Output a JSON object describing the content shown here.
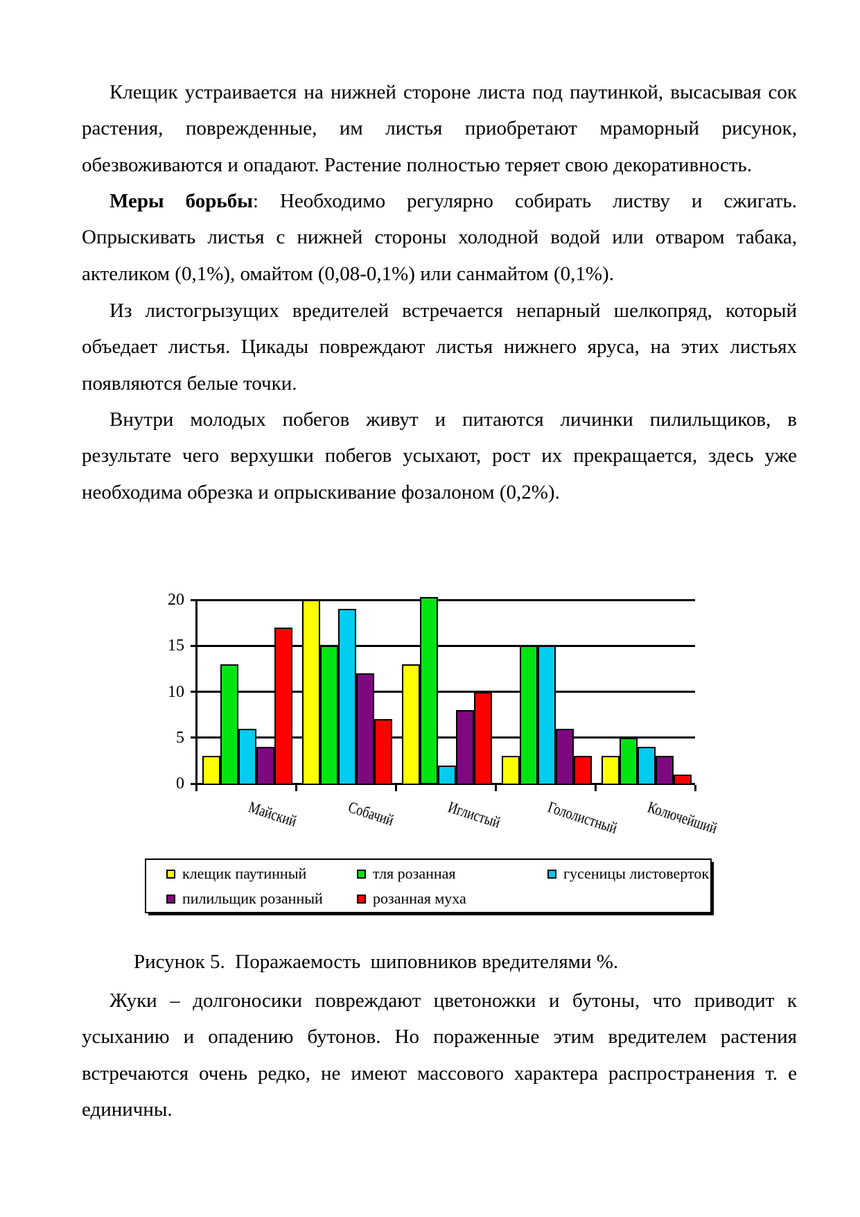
{
  "paragraphs": [
    {
      "indent": true,
      "lines": [
        {
          "justify": true,
          "segments": [
            {
              "text": "Клещик устраивается на нижней стороне листа под паутинкой, высасывая сок",
              "bold": false
            }
          ]
        },
        {
          "justify": true,
          "segments": [
            {
              "text": "растения, поврежденные, им листья приобретают мраморный рисунок,",
              "bold": false
            }
          ]
        },
        {
          "justify": false,
          "segments": [
            {
              "text": "обезвоживаются и опадают. Растение полностью теряет свою декоративность.",
              "bold": false
            }
          ]
        }
      ]
    },
    {
      "indent": true,
      "lines": [
        {
          "justify": true,
          "segments": [
            {
              "text": "Меры борьбы",
              "bold": true
            },
            {
              "text": ": Необходимо регулярно собирать листву и сжигать.",
              "bold": false
            }
          ]
        },
        {
          "justify": true,
          "segments": [
            {
              "text": "Опрыскивать листья с нижней стороны холодной водой или отваром табака,",
              "bold": false
            }
          ]
        },
        {
          "justify": false,
          "segments": [
            {
              "text": "актеликом (0,1%), омайтом (0,08-0,1%) или санмайтом (0,1%).",
              "bold": false
            }
          ]
        }
      ]
    },
    {
      "indent": true,
      "lines": [
        {
          "justify": true,
          "segments": [
            {
              "text": "Из листогрызущих вредителей встречается непарный шелкопряд, который",
              "bold": false
            }
          ]
        },
        {
          "justify": true,
          "segments": [
            {
              "text": "объедает листья. Цикады повреждают листья нижнего яруса, на этих листьях",
              "bold": false
            }
          ]
        },
        {
          "justify": false,
          "segments": [
            {
              "text": "появляются белые точки.",
              "bold": false
            }
          ]
        }
      ]
    },
    {
      "indent": true,
      "lines": [
        {
          "justify": true,
          "segments": [
            {
              "text": "Внутри молодых побегов живут и питаются личинки пилильщиков, в",
              "bold": false
            }
          ]
        },
        {
          "justify": true,
          "segments": [
            {
              "text": "результате чего верхушки побегов усыхают, рост их прекращается, здесь уже",
              "bold": false
            }
          ]
        },
        {
          "justify": false,
          "segments": [
            {
              "text": "необходима обрезка и опрыскивание фозалоном (0,2%).",
              "bold": false
            }
          ]
        }
      ]
    },
    {
      "indent": true,
      "lines": [
        {
          "justify": true,
          "segments": [
            {
              "text": "Жуки – долгоносики повреждают цветоножки и бутоны, что приводит к",
              "bold": false
            }
          ]
        },
        {
          "justify": true,
          "segments": [
            {
              "text": "усыханию и опадению бутонов. Но пораженные этим вредителем растения",
              "bold": false
            }
          ]
        },
        {
          "justify": true,
          "segments": [
            {
              "text": "встречаются очень редко, не имеют массового характера распространения т. е",
              "bold": false
            }
          ]
        },
        {
          "justify": false,
          "segments": [
            {
              "text": "единичны.",
              "bold": false
            }
          ]
        }
      ]
    }
  ],
  "figure_caption": "Рисунок 5.  Поражаемость  шиповников вредителями %.",
  "chart_data": {
    "type": "bar",
    "title": "",
    "categories": [
      "Майский",
      "Собачий",
      "Иглистый",
      "Гололистный",
      "Колючейший"
    ],
    "series": [
      {
        "name": "клещик паутинный",
        "color": "#FFFF00",
        "values": [
          3,
          20,
          13,
          3,
          3
        ]
      },
      {
        "name": "тля розанная",
        "color": "#00E512",
        "values": [
          13,
          15,
          20.3,
          15,
          5
        ]
      },
      {
        "name": "гусеницы листоверток",
        "color": "#00CCF0",
        "values": [
          6,
          19,
          2,
          15,
          4
        ]
      },
      {
        "name": "пилильщик розанный",
        "color": "#7D0880",
        "values": [
          4,
          12,
          8,
          6,
          3
        ]
      },
      {
        "name": "розанная муха",
        "color": "#FF0000",
        "values": [
          17,
          7,
          10,
          3,
          1
        ]
      }
    ],
    "ylim": [
      0,
      20
    ],
    "yticks": [
      0,
      5,
      10,
      15,
      20
    ],
    "grid": true,
    "legend_position": "bottom-box"
  }
}
